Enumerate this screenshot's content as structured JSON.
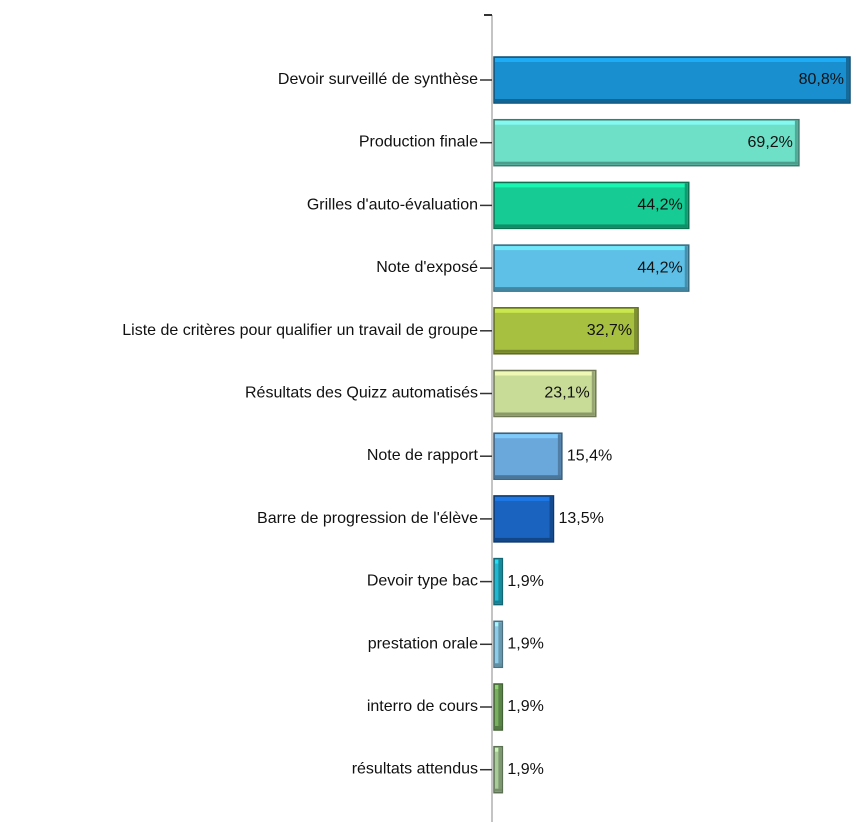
{
  "chart_data": {
    "type": "bar",
    "orientation": "horizontal",
    "categories": [
      "Devoir surveillé de synthèse",
      "Production finale",
      "Grilles d'auto-évaluation",
      "Note d'exposé",
      "Liste de critères pour qualifier un travail de groupe",
      "Résultats des Quizz automatisés",
      "Note de rapport",
      "Barre de progression de l'élève",
      "Devoir type bac",
      "prestation orale",
      "interro de cours",
      "résultats attendus"
    ],
    "values": [
      80.8,
      69.2,
      44.2,
      44.2,
      32.7,
      23.1,
      15.4,
      13.5,
      1.9,
      1.9,
      1.9,
      1.9
    ],
    "value_labels": [
      "80,8%",
      "69,2%",
      "44,2%",
      "44,2%",
      "32,7%",
      "23,1%",
      "15,4%",
      "13,5%",
      "1,9%",
      "1,9%",
      "1,9%",
      "1,9%"
    ],
    "colors": [
      "#1a8fd0",
      "#6ee0c8",
      "#16cc94",
      "#5ec0e6",
      "#a8c040",
      "#c8dc98",
      "#6aa8dc",
      "#1a64c0",
      "#20b8d0",
      "#8ccce8",
      "#78b060",
      "#a8cc98"
    ]
  }
}
